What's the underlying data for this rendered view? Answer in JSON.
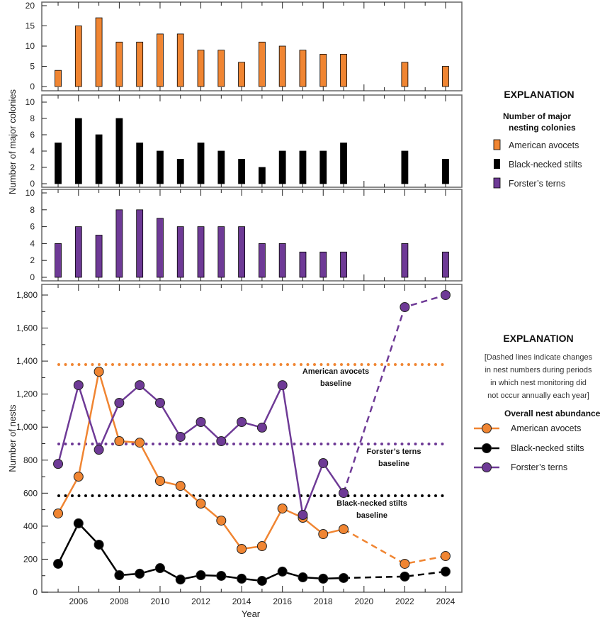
{
  "chart_data": [
    {
      "type": "bar",
      "panel": "colonies-avocets",
      "categories": [
        2005,
        2006,
        2007,
        2008,
        2009,
        2010,
        2011,
        2012,
        2013,
        2014,
        2015,
        2016,
        2017,
        2018,
        2019,
        2022,
        2024
      ],
      "values": [
        4,
        15,
        17,
        11,
        11,
        13,
        13,
        9,
        9,
        6,
        11,
        10,
        9,
        8,
        8,
        6,
        5
      ],
      "ylim": [
        0,
        20
      ],
      "yticks": [
        0,
        5,
        10,
        15,
        20
      ],
      "color": "#F08532"
    },
    {
      "type": "bar",
      "panel": "colonies-stilts",
      "categories": [
        2005,
        2006,
        2007,
        2008,
        2009,
        2010,
        2011,
        2012,
        2013,
        2014,
        2015,
        2016,
        2017,
        2018,
        2019,
        2022,
        2024
      ],
      "values": [
        5,
        8,
        6,
        8,
        5,
        4,
        3,
        5,
        4,
        3,
        2,
        4,
        4,
        4,
        5,
        4,
        3
      ],
      "ylim": [
        0,
        10
      ],
      "yticks": [
        0,
        2,
        4,
        6,
        8,
        10
      ],
      "color": "#000000"
    },
    {
      "type": "bar",
      "panel": "colonies-terns",
      "categories": [
        2005,
        2006,
        2007,
        2008,
        2009,
        2010,
        2011,
        2012,
        2013,
        2014,
        2015,
        2016,
        2017,
        2018,
        2019,
        2022,
        2024
      ],
      "values": [
        4,
        6,
        5,
        8,
        8,
        7,
        6,
        6,
        6,
        6,
        4,
        4,
        3,
        3,
        3,
        4,
        3
      ],
      "ylim": [
        0,
        10
      ],
      "yticks": [
        0,
        2,
        4,
        6,
        8,
        10
      ],
      "color": "#6E3A96"
    },
    {
      "type": "line",
      "x": [
        2005,
        2006,
        2007,
        2008,
        2009,
        2010,
        2011,
        2012,
        2013,
        2014,
        2015,
        2016,
        2017,
        2018,
        2019,
        2022,
        2024
      ],
      "series": [
        {
          "name": "American avocets",
          "color": "#F08532",
          "values": [
            477,
            700,
            1336,
            915,
            906,
            674,
            644,
            537,
            434,
            262,
            279,
            507,
            451,
            352,
            382,
            172,
            219
          ],
          "baseline": 1379,
          "baseline_label": [
            "American avocets",
            "baseline"
          ]
        },
        {
          "name": "Black-necked stilts",
          "color": "#000000",
          "values": [
            172,
            417,
            288,
            103,
            112,
            146,
            77,
            103,
            99,
            82,
            69,
            125,
            90,
            82,
            86,
            95,
            125
          ],
          "baseline": 584,
          "baseline_label": [
            "Black-necked stilts",
            "baseline"
          ]
        },
        {
          "name": "Forster’s terns",
          "color": "#6E3A96",
          "values": [
            777,
            1254,
            863,
            1147,
            1254,
            1147,
            941,
            1031,
            915,
            1031,
            997,
            1254,
            468,
            782,
            601,
            1727,
            1800
          ],
          "baseline": 898,
          "baseline_label": [
            "Forster’s terns",
            "baseline"
          ]
        }
      ],
      "dashed_after": 2019,
      "ylim": [
        0,
        1800
      ],
      "yticks": [
        0,
        200,
        400,
        600,
        800,
        1000,
        1200,
        1400,
        1600,
        1800
      ],
      "ytick_labels": [
        "0",
        "200",
        "400",
        "600",
        "800",
        "1,000",
        "1,200",
        "1,400",
        "1,600",
        "1,800"
      ],
      "xlim": [
        2004.2,
        2024.8
      ],
      "xticks": [
        2006,
        2008,
        2010,
        2012,
        2014,
        2016,
        2018,
        2020,
        2022,
        2024
      ],
      "xlabel": "Year",
      "ylabel": "Number of nests"
    }
  ],
  "top_ylabel": "Number of major colonies",
  "legend_top": {
    "title": "EXPLANATION",
    "subtitle": [
      "Number of major",
      "nesting colonies"
    ],
    "items": [
      "American avocets",
      "Black-necked stilts",
      "Forster’s terns"
    ]
  },
  "legend_bottom": {
    "title": "EXPLANATION",
    "note": [
      "[Dashed lines indicate changes",
      "in nest numbers during periods",
      "in which nest monitoring did",
      "not occur annually each year]"
    ],
    "subtitle": "Overall nest abundance",
    "items": [
      "American avocets",
      "Black-necked stilts",
      "Forster’s terns"
    ]
  }
}
